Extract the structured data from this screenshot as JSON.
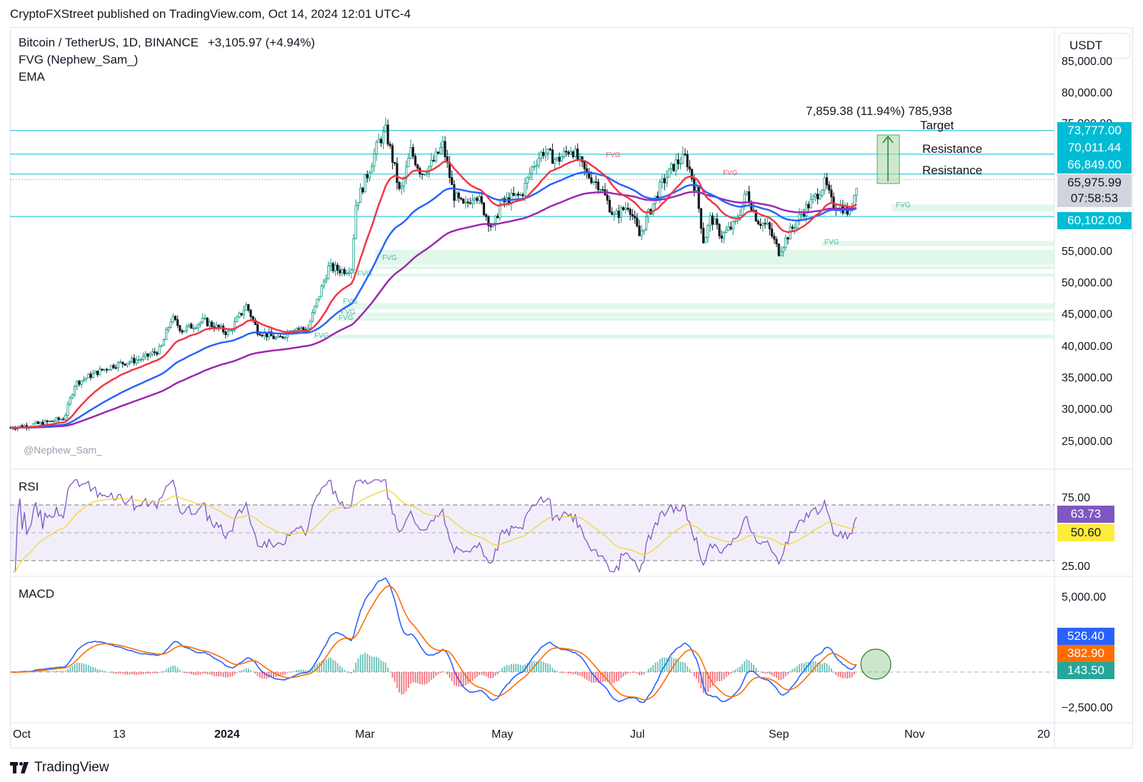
{
  "publisher": "CryptoFXStreet published on TradingView.com, Oct 14, 2024 12:01 UTC-4",
  "legend": {
    "symbol": "Bitcoin / TetherUS, 1D, BINANCE",
    "change": "+3,105.97 (+4.94%)",
    "indicator1": "FVG (Nephew_Sam_)",
    "indicator2": "EMA"
  },
  "currency_button": "USDT",
  "watermark": "@Nephew_Sam_",
  "brand": "TradingView",
  "annotations": {
    "measure": "7,859.38 (11.94%) 785,938",
    "target": "Target",
    "resistance1": "Resistance",
    "resistance2": "Resistance"
  },
  "price_axis": [
    "85,000.00",
    "80,000.00",
    "75,000.00",
    "55,000.00",
    "50,000.00",
    "45,000.00",
    "40,000.00",
    "35,000.00",
    "30,000.00",
    "25,000.00"
  ],
  "price_tags": [
    {
      "value": "73,777.00",
      "color": "#00bcd4"
    },
    {
      "value": "70,011.44",
      "color": "#00bcd4"
    },
    {
      "value": "66,849.00",
      "color": "#00bcd4"
    },
    {
      "value": "65,975.99",
      "color": "#d1d4dc"
    },
    {
      "value": "07:58:53",
      "color": "#d1d4dc"
    },
    {
      "value": "60,102.00",
      "color": "#00bcd4"
    }
  ],
  "fvg_labels": [
    "FVG",
    "FVG",
    "FVG",
    "FVG",
    "FVG",
    "FVG",
    "FVG",
    "FVG",
    "FVG",
    "FVG"
  ],
  "rsi": {
    "title": "RSI",
    "axis": [
      "75.00",
      "25.00"
    ],
    "tags": [
      {
        "value": "63.73",
        "color": "#7e57c2"
      },
      {
        "value": "50.60",
        "color": "#ffeb3b"
      }
    ]
  },
  "macd": {
    "title": "MACD",
    "axis": [
      "5,000.00",
      "−2,500.00"
    ],
    "tags": [
      {
        "value": "526.40",
        "color": "#2962ff"
      },
      {
        "value": "382.90",
        "color": "#ff6d00"
      },
      {
        "value": "143.50",
        "color": "#26a69a"
      }
    ]
  },
  "time_axis": [
    "Oct",
    "13",
    "2024",
    "Mar",
    "May",
    "Jul",
    "Sep",
    "Nov",
    "20"
  ],
  "colors": {
    "up": "#089981",
    "down": "#131722",
    "ema_red": "#f23645",
    "ema_blue": "#2962ff",
    "ema_purple": "#9c27b0",
    "level_line": "#00bcd4",
    "fvg_green": "#c8f0d8",
    "fvg_red": "#f7a6ad"
  }
}
